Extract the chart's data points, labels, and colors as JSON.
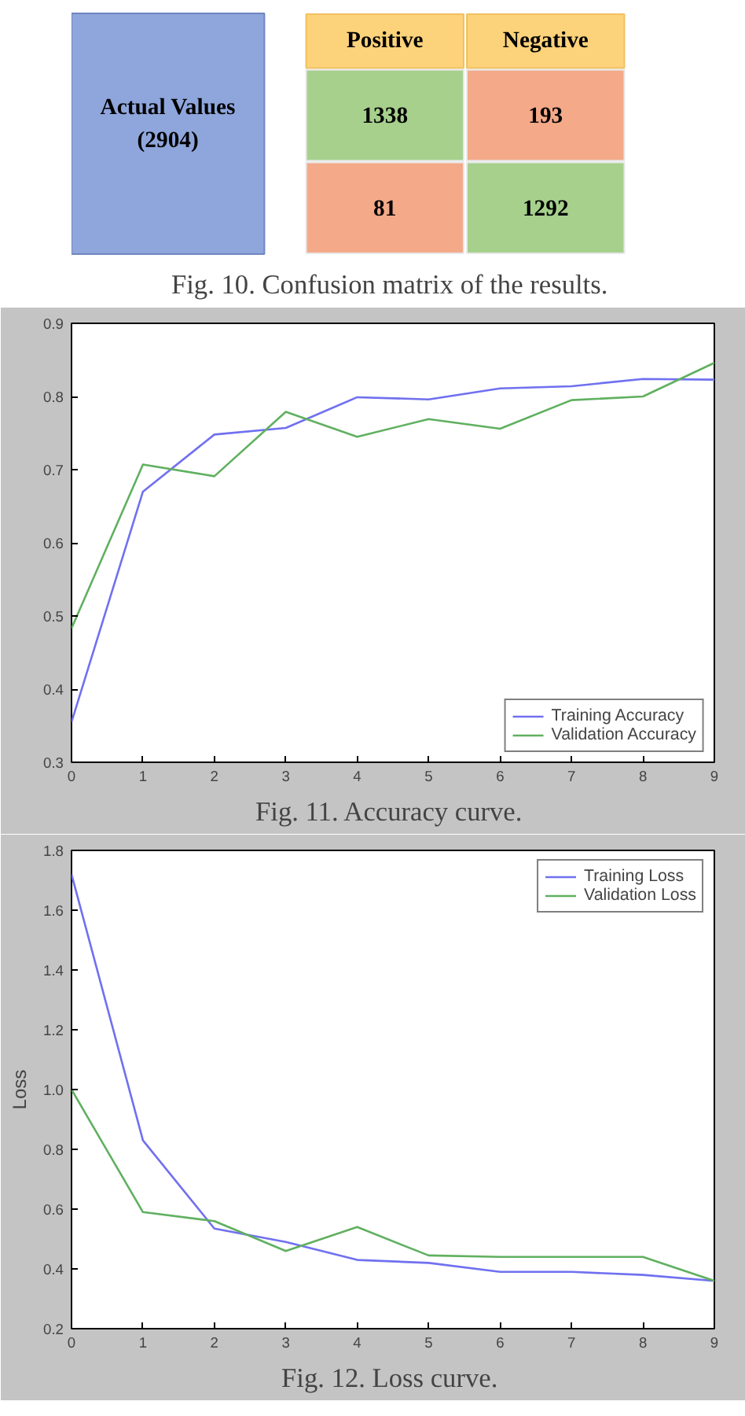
{
  "chart_data": [
    {
      "type": "heatmap",
      "categories": [
        "Positive",
        "Negative"
      ],
      "y_categories": [
        null,
        null
      ],
      "ylabel": "Actual Values\n(2904)",
      "cells": [
        [
          1338,
          193
        ],
        [
          81,
          1292
        ]
      ],
      "colors": [
        "#a6d08c",
        "#f4a988",
        "#f4a988",
        "#a6d08c"
      ],
      "data_labels": true,
      "annotations": [
        "Fig. 10.  Confusion matrix of the results."
      ]
    },
    {
      "type": "line",
      "x": [
        0,
        1,
        2,
        3,
        4,
        5,
        6,
        7,
        8,
        9
      ],
      "series": [
        {
          "name": "Training Accuracy",
          "color": "#7070f0",
          "values": [
            0.355,
            0.67,
            0.748,
            0.757,
            0.799,
            0.796,
            0.811,
            0.814,
            0.824,
            0.823
          ]
        },
        {
          "name": "Validation Accuracy",
          "color": "#60b060",
          "values": [
            0.483,
            0.707,
            0.691,
            0.779,
            0.745,
            0.769,
            0.756,
            0.795,
            0.8,
            0.846
          ]
        }
      ],
      "xlim": [
        0,
        9
      ],
      "xticks": [
        0,
        1,
        2,
        3,
        4,
        5,
        6,
        7,
        8,
        9
      ],
      "ylim": [
        0.3,
        0.9
      ],
      "yticks": [
        0.3,
        0.4,
        0.5,
        0.6,
        0.7,
        0.8,
        0.9
      ],
      "legend": "bottom right",
      "grid": false,
      "annotations": [
        "Fig. 11.  Accuracy curve."
      ]
    },
    {
      "type": "line",
      "x": [
        0,
        1,
        2,
        3,
        4,
        5,
        6,
        7,
        8,
        9
      ],
      "ylabel": "Loss",
      "series": [
        {
          "name": "Training Loss",
          "color": "#7070f0",
          "values": [
            1.72,
            0.83,
            0.535,
            0.49,
            0.43,
            0.42,
            0.39,
            0.39,
            0.38,
            0.36
          ]
        },
        {
          "name": "Validation Loss",
          "color": "#60b060",
          "values": [
            1.0,
            0.59,
            0.56,
            0.46,
            0.54,
            0.445,
            0.44,
            0.44,
            0.44,
            0.36
          ]
        }
      ],
      "xlim": [
        0,
        9
      ],
      "xticks": [
        0,
        1,
        2,
        3,
        4,
        5,
        6,
        7,
        8,
        9
      ],
      "ylim": [
        0.2,
        1.8
      ],
      "yticks": [
        0.2,
        0.4,
        0.6,
        0.8,
        {
          "value": 1.0,
          "label": "1.0"
        },
        1.2,
        1.4,
        1.6,
        1.8
      ],
      "legend": "top right",
      "grid": false,
      "annotations": [
        "Fig. 12.  Loss curve."
      ]
    }
  ]
}
